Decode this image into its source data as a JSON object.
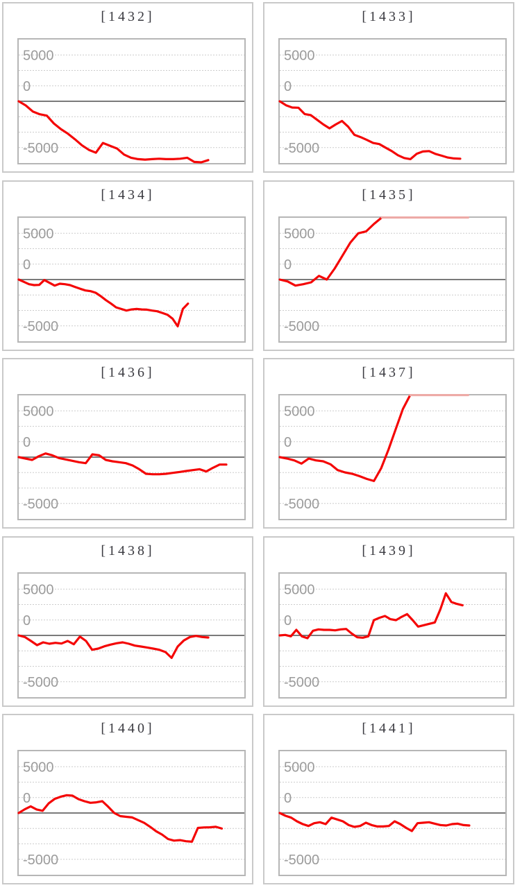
{
  "page": {
    "background": "#ffffff",
    "description": "Grid of 10 slump line charts (machine differential-coin graphs), 2 columns x 5 rows"
  },
  "chart_defaults": {
    "type": "line",
    "y_axis": {
      "tick_labels": [
        "5000",
        "0",
        "-5000"
      ],
      "tick_values": [
        5000,
        0,
        -5000
      ],
      "tick_gridline_rows": [
        1,
        3,
        7
      ],
      "range": [
        -6650,
        6650
      ],
      "gridline_count": 7,
      "zero_line_row": 4,
      "grid_style": "dotted horizontal"
    },
    "x_axis": {
      "tick_labels": "none"
    },
    "legend": "none",
    "clip_value": 6650,
    "colors": {
      "line": "#f40606",
      "line_clipped": "#edaaa6",
      "zero_line": "#7a7a7a",
      "gridline": "#cccccc",
      "plot_border": "#b6b6b6",
      "box_border": "#c9c9c9",
      "title_text": "#3a3a40",
      "tick_text": "#9b9b9b",
      "background": "#ffffff"
    }
  },
  "chart_data": [
    {
      "type": "line",
      "title": "[1432]",
      "x_extent": 0.84,
      "values": [
        0,
        -450,
        -1100,
        -1400,
        -1550,
        -2400,
        -3000,
        -3500,
        -4100,
        -4750,
        -5250,
        -5550,
        -4500,
        -4800,
        -5100,
        -5750,
        -6100,
        -6250,
        -6300,
        -6250,
        -6200,
        -6250,
        -6250,
        -6200,
        -6100,
        -6550,
        -6600,
        -6350
      ]
    },
    {
      "type": "line",
      "title": "[1433]",
      "x_extent": 0.8,
      "values": [
        0,
        -425,
        -675,
        -700,
        -1375,
        -1500,
        -2000,
        -2500,
        -2925,
        -2500,
        -2125,
        -2750,
        -3625,
        -3875,
        -4175,
        -4500,
        -4625,
        -5000,
        -5375,
        -5825,
        -6125,
        -6250,
        -5675,
        -5425,
        -5375,
        -5675,
        -5875,
        -6075,
        -6175,
        -6200
      ]
    },
    {
      "type": "line",
      "title": "[1434]",
      "x_extent": 0.75,
      "values": [
        0,
        -250,
        -500,
        -600,
        -575,
        -50,
        -350,
        -650,
        -450,
        -500,
        -600,
        -800,
        -1000,
        -1175,
        -1250,
        -1425,
        -1800,
        -2225,
        -2600,
        -3000,
        -3175,
        -3350,
        -3225,
        -3175,
        -3225,
        -3250,
        -3350,
        -3425,
        -3600,
        -3800,
        -4225,
        -5050,
        -3175,
        -2600
      ]
    },
    {
      "type": "line",
      "title": "[1435]",
      "x_extent": 0.835,
      "values": [
        0,
        -200,
        -650,
        -500,
        -300,
        400,
        0,
        1200,
        2600,
        4000,
        5000,
        5200,
        6000,
        6650,
        6650,
        6650,
        6650,
        6650,
        6650,
        6650,
        6650,
        6650,
        6650,
        6650,
        6650
      ]
    },
    {
      "type": "line",
      "title": "[1436]",
      "x_extent": 0.92,
      "values": [
        0,
        -150,
        -300,
        100,
        400,
        200,
        -100,
        -250,
        -400,
        -550,
        -650,
        300,
        200,
        -300,
        -450,
        -550,
        -650,
        -900,
        -1300,
        -1800,
        -1850,
        -1850,
        -1800,
        -1700,
        -1600,
        -1500,
        -1400,
        -1300,
        -1550,
        -1150,
        -800,
        -800
      ]
    },
    {
      "type": "line",
      "title": "[1437]",
      "x_extent": 0.835,
      "values": [
        0,
        -150,
        -350,
        -700,
        -150,
        -350,
        -450,
        -775,
        -1400,
        -1650,
        -1800,
        -2050,
        -2350,
        -2575,
        -1200,
        800,
        3000,
        5200,
        6650,
        6650,
        6650,
        6650,
        6650,
        6650,
        6650,
        6650,
        6650
      ]
    },
    {
      "type": "line",
      "title": "[1438]",
      "x_extent": 0.84,
      "values": [
        0,
        -175,
        -600,
        -1050,
        -750,
        -900,
        -800,
        -875,
        -600,
        -950,
        -125,
        -600,
        -1550,
        -1425,
        -1175,
        -1000,
        -850,
        -750,
        -900,
        -1100,
        -1200,
        -1300,
        -1425,
        -1550,
        -1800,
        -2425,
        -1200,
        -550,
        -175,
        -50,
        -175,
        -225
      ]
    },
    {
      "type": "line",
      "title": "[1439]",
      "x_extent": 0.81,
      "values": [
        0,
        50,
        -100,
        600,
        -100,
        -300,
        500,
        650,
        600,
        600,
        550,
        650,
        700,
        200,
        -200,
        -250,
        -100,
        1650,
        1900,
        2100,
        1750,
        1650,
        2000,
        2300,
        1650,
        950,
        1100,
        1250,
        1400,
        2800,
        4550,
        3600,
        3400,
        3250
      ]
    },
    {
      "type": "line",
      "title": "[1440]",
      "x_extent": 0.9,
      "values": [
        0,
        400,
        720,
        380,
        240,
        1030,
        1510,
        1750,
        1920,
        1870,
        1500,
        1270,
        1100,
        1150,
        1270,
        670,
        0,
        -340,
        -410,
        -480,
        -770,
        -1060,
        -1490,
        -1970,
        -2330,
        -2810,
        -2980,
        -2930,
        -3050,
        -3100,
        -1610,
        -1560,
        -1540,
        -1490,
        -1680
      ]
    },
    {
      "type": "line",
      "title": "[1441]",
      "x_extent": 0.84,
      "values": [
        0,
        -300,
        -500,
        -900,
        -1200,
        -1400,
        -1100,
        -1000,
        -1200,
        -500,
        -700,
        -900,
        -1300,
        -1500,
        -1400,
        -1050,
        -1300,
        -1450,
        -1450,
        -1400,
        -900,
        -1200,
        -1600,
        -1950,
        -1100,
        -1050,
        -1000,
        -1150,
        -1300,
        -1350,
        -1200,
        -1150,
        -1300,
        -1350
      ]
    }
  ]
}
